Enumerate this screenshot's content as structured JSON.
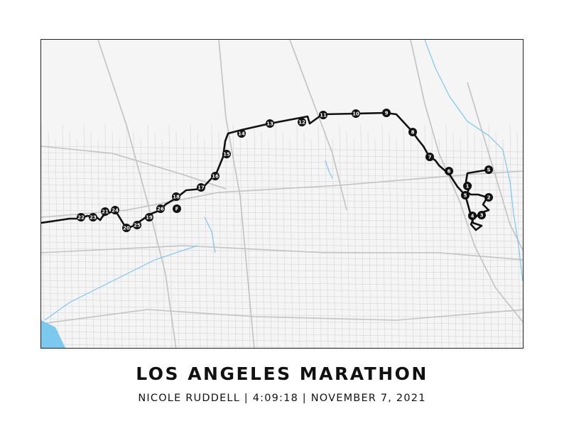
{
  "poster": {
    "title": "LOS ANGELES MARATHON",
    "subtitle": "NICOLE RUDDELL | 4:09:18 | NOVEMBER 7, 2021"
  },
  "map": {
    "colors": {
      "land": "#f4f4f4",
      "street": "#d4d4d4",
      "major_road": "#bdbdbd",
      "water": "#7cc8ef",
      "route": "#111111",
      "marker": "#111111"
    },
    "markers": [
      "S",
      "1",
      "2",
      "3",
      "4",
      "5",
      "6",
      "7",
      "8",
      "9",
      "10",
      "11",
      "12",
      "13",
      "14",
      "15",
      "16",
      "17",
      "18",
      "19",
      "20",
      "21",
      "22",
      "23",
      "24",
      "25",
      "26",
      "F"
    ]
  }
}
